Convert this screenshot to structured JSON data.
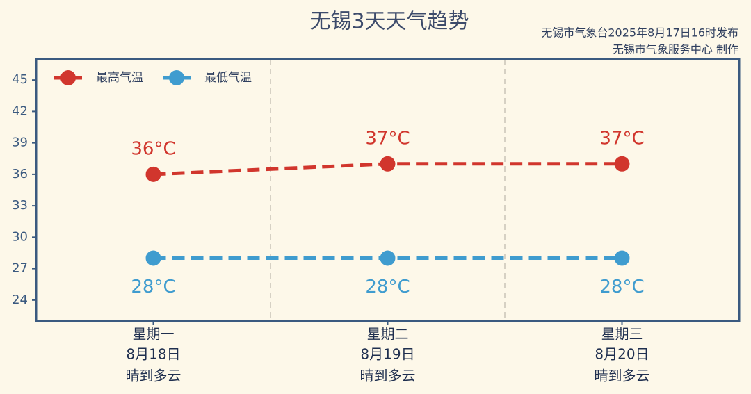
{
  "chart_data": {
    "type": "line",
    "title": "无锡3天天气趋势",
    "credits": [
      "无锡市气象台2025年8月17日16时发布",
      "无锡市气象服务中心  制作"
    ],
    "categories": [
      "星期一",
      "星期二",
      "星期三"
    ],
    "dates": [
      "8月18日",
      "8月19日",
      "8月20日"
    ],
    "weather": [
      "晴到多云",
      "晴到多云",
      "晴到多云"
    ],
    "series": [
      {
        "name": "最高气温",
        "color": "#d1362d",
        "values": [
          36,
          37,
          37
        ],
        "value_labels": [
          "36°C",
          "37°C",
          "37°C"
        ]
      },
      {
        "name": "最低气温",
        "color": "#3f9ccf",
        "values": [
          28,
          28,
          28
        ],
        "value_labels": [
          "28°C",
          "28°C",
          "28°C"
        ]
      }
    ],
    "ylim": [
      22,
      47
    ],
    "yticks": [
      24,
      27,
      30,
      33,
      36,
      39,
      42,
      45
    ],
    "legend": "top-left"
  }
}
